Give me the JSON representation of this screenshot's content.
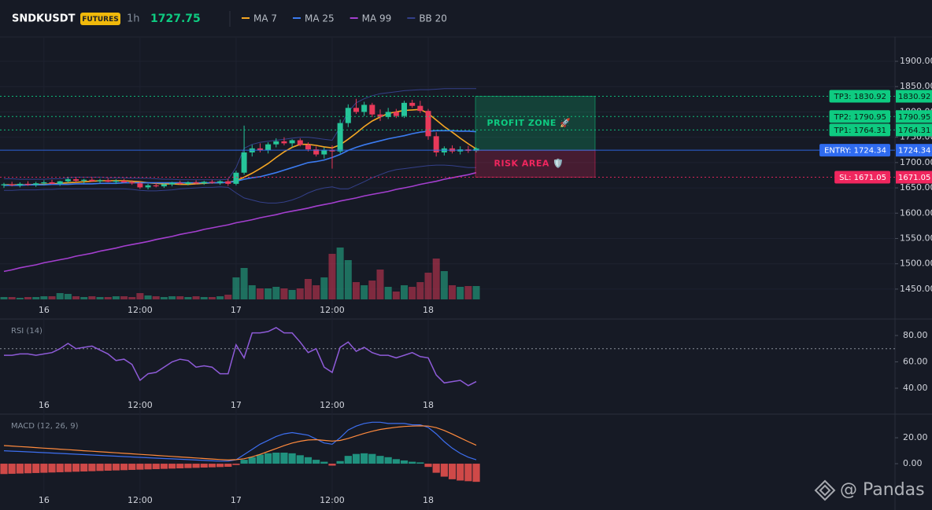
{
  "chart_data": [
    {
      "type": "candlestick",
      "title": "SNDKUSDT",
      "badge": "FUTURES",
      "interval": "1h",
      "last_price": 1727.75,
      "categories": [
        null,
        null,
        null,
        null,
        null,
        "16",
        null,
        null,
        null,
        null,
        null,
        null,
        null,
        null,
        null,
        null,
        null,
        "12:00",
        null,
        null,
        null,
        null,
        null,
        null,
        null,
        null,
        null,
        null,
        null,
        "17",
        null,
        null,
        null,
        null,
        null,
        null,
        null,
        null,
        null,
        null,
        null,
        "12:00",
        null,
        null,
        null,
        null,
        null,
        null,
        null,
        null,
        null,
        null,
        null,
        "18",
        null,
        null,
        null,
        null,
        null,
        null
      ],
      "open": [
        1655,
        1657,
        1655,
        1658,
        1656,
        1659,
        1661,
        1658,
        1663,
        1667,
        1664,
        1666,
        1663,
        1665,
        1662,
        1664,
        1661,
        1659,
        1651,
        1655,
        1653,
        1657,
        1660,
        1658,
        1661,
        1659,
        1662,
        1660,
        1663,
        1658,
        1680,
        1720,
        1728,
        1724,
        1736,
        1742,
        1738,
        1744,
        1735,
        1726,
        1716,
        1725,
        1722,
        1778,
        1808,
        1800,
        1814,
        1795,
        1790,
        1800,
        1792,
        1818,
        1812,
        1802,
        1752,
        1720,
        1728,
        1722,
        1726,
        1723
      ],
      "high": [
        1660,
        1662,
        1661,
        1663,
        1662,
        1665,
        1666,
        1664,
        1672,
        1670,
        1668,
        1670,
        1668,
        1669,
        1667,
        1668,
        1665,
        1662,
        1658,
        1660,
        1659,
        1662,
        1664,
        1663,
        1665,
        1664,
        1666,
        1665,
        1668,
        1684,
        1773,
        1735,
        1738,
        1740,
        1748,
        1750,
        1746,
        1748,
        1740,
        1732,
        1730,
        1734,
        1785,
        1815,
        1826,
        1820,
        1818,
        1805,
        1808,
        1806,
        1822,
        1824,
        1822,
        1806,
        1760,
        1732,
        1734,
        1732,
        1733,
        1730
      ],
      "low": [
        1650,
        1653,
        1651,
        1654,
        1652,
        1655,
        1657,
        1654,
        1660,
        1661,
        1659,
        1662,
        1659,
        1661,
        1658,
        1660,
        1656,
        1648,
        1647,
        1651,
        1650,
        1653,
        1656,
        1655,
        1657,
        1656,
        1658,
        1656,
        1654,
        1655,
        1676,
        1712,
        1720,
        1718,
        1730,
        1734,
        1730,
        1732,
        1722,
        1712,
        1708,
        1688,
        1718,
        1770,
        1796,
        1792,
        1790,
        1782,
        1786,
        1788,
        1788,
        1808,
        1798,
        1745,
        1712,
        1714,
        1718,
        1716,
        1719,
        1720
      ],
      "close": [
        1657,
        1655,
        1658,
        1656,
        1659,
        1661,
        1658,
        1663,
        1667,
        1664,
        1666,
        1663,
        1665,
        1662,
        1664,
        1661,
        1659,
        1651,
        1655,
        1653,
        1657,
        1660,
        1658,
        1661,
        1659,
        1662,
        1660,
        1663,
        1658,
        1680,
        1720,
        1728,
        1724,
        1736,
        1742,
        1738,
        1744,
        1735,
        1726,
        1716,
        1725,
        1722,
        1778,
        1808,
        1800,
        1814,
        1795,
        1790,
        1800,
        1792,
        1818,
        1812,
        1802,
        1752,
        1720,
        1728,
        1722,
        1726,
        1723,
        1727.75
      ],
      "volume": [
        3,
        3,
        2,
        3,
        3,
        4,
        4,
        8,
        7,
        4,
        3,
        4,
        3,
        3,
        4,
        4,
        3,
        8,
        5,
        4,
        3,
        4,
        4,
        3,
        4,
        3,
        3,
        4,
        6,
        28,
        40,
        18,
        14,
        14,
        16,
        14,
        12,
        14,
        26,
        18,
        28,
        58,
        66,
        50,
        22,
        18,
        24,
        38,
        16,
        10,
        18,
        16,
        22,
        34,
        52,
        36,
        18,
        16,
        17,
        17
      ],
      "up_color": "#26c59a",
      "down_color": "#e8395a",
      "series": [
        {
          "name": "MA 7",
          "color": "#f5a623",
          "values": [
            1656,
            1656,
            1656,
            1656,
            1657,
            1657,
            1658,
            1659,
            1660,
            1661,
            1662,
            1663,
            1664,
            1664,
            1664,
            1664,
            1663,
            1662,
            1660,
            1659,
            1658,
            1658,
            1657,
            1657,
            1658,
            1659,
            1660,
            1660,
            1661,
            1664,
            1671,
            1679,
            1688,
            1698,
            1710,
            1721,
            1730,
            1736,
            1736,
            1734,
            1731,
            1729,
            1735,
            1746,
            1758,
            1771,
            1782,
            1790,
            1797,
            1800,
            1803,
            1804,
            1805,
            1797,
            1784,
            1771,
            1760,
            1748,
            1737,
            1727
          ]
        },
        {
          "name": "MA 25",
          "color": "#3b7bf0",
          "values": [
            1655,
            1655,
            1655,
            1656,
            1656,
            1656,
            1657,
            1657,
            1657,
            1658,
            1658,
            1658,
            1659,
            1659,
            1659,
            1660,
            1660,
            1660,
            1660,
            1660,
            1660,
            1660,
            1660,
            1660,
            1660,
            1660,
            1660,
            1660,
            1661,
            1663,
            1667,
            1670,
            1672,
            1676,
            1680,
            1685,
            1690,
            1695,
            1700,
            1702,
            1705,
            1710,
            1716,
            1724,
            1730,
            1735,
            1739,
            1743,
            1747,
            1750,
            1753,
            1757,
            1760,
            1762,
            1763,
            1763,
            1763,
            1762,
            1762,
            1761
          ]
        },
        {
          "name": "MA 99",
          "color": "#a43fcf",
          "values": [
            1485,
            1488,
            1492,
            1495,
            1498,
            1502,
            1505,
            1508,
            1511,
            1515,
            1518,
            1521,
            1525,
            1528,
            1531,
            1535,
            1538,
            1541,
            1544,
            1548,
            1551,
            1554,
            1558,
            1561,
            1564,
            1568,
            1571,
            1574,
            1577,
            1581,
            1584,
            1587,
            1591,
            1594,
            1597,
            1601,
            1604,
            1607,
            1610,
            1614,
            1617,
            1620,
            1624,
            1627,
            1630,
            1634,
            1637,
            1640,
            1643,
            1647,
            1650,
            1653,
            1657,
            1660,
            1663,
            1667,
            1670,
            1673,
            1676,
            1680
          ]
        },
        {
          "name": "BB 20",
          "color": "#34408a",
          "values": [
            1668,
            1668,
            1667,
            1667,
            1667,
            1667,
            1668,
            1668,
            1670,
            1671,
            1671,
            1671,
            1671,
            1670,
            1670,
            1670,
            1669,
            1669,
            1669,
            1668,
            1667,
            1667,
            1666,
            1666,
            1666,
            1666,
            1666,
            1666,
            1667,
            1690,
            1728,
            1736,
            1740,
            1742,
            1744,
            1746,
            1748,
            1750,
            1750,
            1748,
            1746,
            1744,
            1770,
            1800,
            1818,
            1826,
            1832,
            1836,
            1838,
            1840,
            1842,
            1843,
            1844,
            1844,
            1845,
            1846,
            1846,
            1846,
            1846,
            1846
          ],
          "lower": [
            1645,
            1645,
            1646,
            1646,
            1646,
            1647,
            1647,
            1648,
            1648,
            1648,
            1648,
            1648,
            1648,
            1648,
            1648,
            1648,
            1647,
            1645,
            1644,
            1644,
            1645,
            1646,
            1648,
            1649,
            1650,
            1651,
            1651,
            1652,
            1651,
            1640,
            1630,
            1626,
            1622,
            1620,
            1620,
            1622,
            1626,
            1632,
            1640,
            1646,
            1650,
            1652,
            1648,
            1648,
            1655,
            1662,
            1670,
            1676,
            1682,
            1686,
            1688,
            1690,
            1692,
            1694,
            1695,
            1695,
            1694,
            1692,
            1690,
            1690
          ]
        }
      ],
      "ylim": [
        1425,
        1943.5
      ],
      "yticks": [
        {
          "value": 1450,
          "label": "1450.00"
        },
        {
          "value": 1500,
          "label": "1500.00"
        },
        {
          "value": 1550,
          "label": "1550.00"
        },
        {
          "value": 1600,
          "label": "1600.00"
        },
        {
          "value": 1650,
          "label": "1650.00"
        },
        {
          "value": 1700,
          "label": "1700.00"
        },
        {
          "value": 1750,
          "label": "1750.00"
        },
        {
          "value": 1800,
          "label": "1800.00"
        },
        {
          "value": 1850,
          "label": "1850.00"
        },
        {
          "value": 1900,
          "label": "1900.00"
        }
      ],
      "grid": true,
      "levels": [
        {
          "label": "TP3: 1830.92",
          "value": 1830.92,
          "color": "#0ecb81",
          "line_style": "dotted"
        },
        {
          "label": "TP2: 1790.95",
          "value": 1790.95,
          "color": "#0ecb81",
          "line_style": "dotted"
        },
        {
          "label": "TP1: 1764.31",
          "value": 1764.31,
          "color": "#0ecb81",
          "line_style": "dotted"
        },
        {
          "label": "ENTRY: 1724.34",
          "value": 1724.34,
          "color": "#2f6bf0",
          "line_style": "solid"
        },
        {
          "label": "SL: 1671.05",
          "value": 1671.05,
          "color": "#f0265e",
          "line_style": "dotted"
        }
      ],
      "zones": [
        {
          "label": "PROFIT ZONE 🚀",
          "color": "#0ecb81"
        },
        {
          "label": "RISK AREA 🛡️",
          "color": "#f0265e"
        }
      ]
    },
    {
      "type": "line",
      "title": "RSI (14)",
      "color": "#8e5bd8",
      "values": [
        65,
        65,
        66,
        66,
        65,
        66,
        67,
        70,
        74,
        70,
        71,
        72,
        69,
        66,
        61,
        62,
        58,
        46,
        51,
        52,
        56,
        60,
        62,
        61,
        56,
        57,
        56,
        51,
        51,
        73,
        63,
        82,
        82,
        83,
        86,
        82,
        82,
        75,
        67,
        70,
        56,
        52,
        71,
        75,
        68,
        71,
        67,
        65,
        65,
        63,
        65,
        67,
        64,
        63,
        50,
        44,
        45,
        46,
        42,
        45
      ],
      "reference_line": 70,
      "ylim": [
        24.5,
        91.3
      ],
      "yticks": [
        {
          "value": 40,
          "label": "40.00"
        },
        {
          "value": 60,
          "label": "60.00"
        },
        {
          "value": 80,
          "label": "80.00"
        }
      ]
    },
    {
      "type": "macd",
      "title": "MACD (12, 26, 9)",
      "series": [
        {
          "color": "#3d6ff0",
          "values": [
            10,
            9.7,
            9.4,
            9.1,
            8.8,
            8.5,
            8.2,
            7.9,
            7.6,
            7.3,
            7,
            6.7,
            6.4,
            6.1,
            5.8,
            5.5,
            5.2,
            4.9,
            4.6,
            4.3,
            4,
            3.7,
            3.4,
            3.1,
            2.8,
            2.5,
            2.2,
            2,
            2,
            3,
            7,
            11,
            15,
            18,
            21,
            23,
            24,
            23,
            22,
            19,
            16,
            15,
            20,
            26,
            29,
            31,
            32,
            32,
            31,
            31,
            31,
            30,
            30,
            28,
            23,
            17,
            12,
            8,
            5,
            3
          ]
        },
        {
          "color": "#ff8a3d",
          "values": [
            14,
            13.6,
            13.2,
            12.8,
            12.4,
            12,
            11.6,
            11.2,
            10.8,
            10.4,
            10,
            9.6,
            9.2,
            8.8,
            8.4,
            8,
            7.6,
            7.2,
            6.8,
            6.4,
            6,
            5.6,
            5.2,
            4.8,
            4.4,
            4,
            3.6,
            3.2,
            2.8,
            3.1,
            3.8,
            5.3,
            7.2,
            9.4,
            11.7,
            13.9,
            15.9,
            17.3,
            18.3,
            18.5,
            18,
            17.4,
            17.9,
            19.5,
            21.4,
            23.3,
            25,
            26.4,
            27.3,
            28.1,
            28.7,
            29,
            29.2,
            29,
            27.8,
            25.6,
            22.9,
            19.9,
            17,
            14.2
          ]
        }
      ],
      "histogram": [
        -8,
        -7.8,
        -7.6,
        -7.4,
        -7.2,
        -7,
        -6.8,
        -6.6,
        -6.4,
        -6.2,
        -6,
        -5.8,
        -5.6,
        -5.4,
        -5.2,
        -5,
        -4.8,
        -4.6,
        -4.4,
        -4.2,
        -4,
        -3.8,
        -3.6,
        -3.4,
        -3.2,
        -3,
        -2.8,
        -2.6,
        -2.4,
        -1,
        3,
        5,
        7,
        8,
        8.5,
        8.5,
        8,
        6.5,
        5,
        3,
        1.5,
        -1.5,
        2,
        6,
        7.5,
        8,
        7.5,
        6,
        5,
        3.5,
        2.5,
        1.5,
        1,
        -2.5,
        -7,
        -10,
        -12,
        -13,
        -13.5,
        -14
      ],
      "up_color": "#22a88f",
      "down_color": "#f0524f",
      "ylim": [
        -23,
        36.4
      ],
      "yticks": [
        {
          "value": 0,
          "label": "0.00"
        },
        {
          "value": 20,
          "label": "20.00"
        }
      ]
    }
  ],
  "watermark": "@ Pandas"
}
